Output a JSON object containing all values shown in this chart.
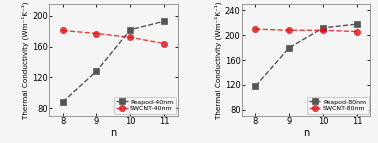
{
  "left": {
    "x": [
      8,
      9,
      10,
      11
    ],
    "peapod": [
      88,
      128,
      182,
      193
    ],
    "swcnt": [
      181,
      177,
      172,
      164
    ],
    "peapod_label": "Peapod-40nm",
    "swcnt_label": "SWCNT-40nm",
    "ylabel": "Thermal Conductivity (Wm⁻¹K⁻¹)",
    "xlabel": "n",
    "ylim": [
      70,
      215
    ],
    "yticks": [
      80,
      120,
      160,
      200
    ],
    "xlim": [
      7.6,
      11.4
    ]
  },
  "right": {
    "x": [
      8,
      9,
      10,
      11
    ],
    "peapod": [
      118,
      180,
      212,
      218
    ],
    "swcnt": [
      210,
      208,
      208,
      206
    ],
    "peapod_label": "Peapod-80nm",
    "swcnt_label": "SWCNT-80nm",
    "ylabel": "Thermal Conductivity (Wm⁻¹K⁻¹)",
    "xlabel": "n",
    "ylim": [
      70,
      250
    ],
    "yticks": [
      80,
      120,
      160,
      200,
      240
    ],
    "xlim": [
      7.6,
      11.4
    ]
  },
  "peapod_color": "#555555",
  "swcnt_color": "#dd1111",
  "background": "#f5f5f5",
  "linewidth": 1.0,
  "markersize": 4.5,
  "linestyle": "--"
}
